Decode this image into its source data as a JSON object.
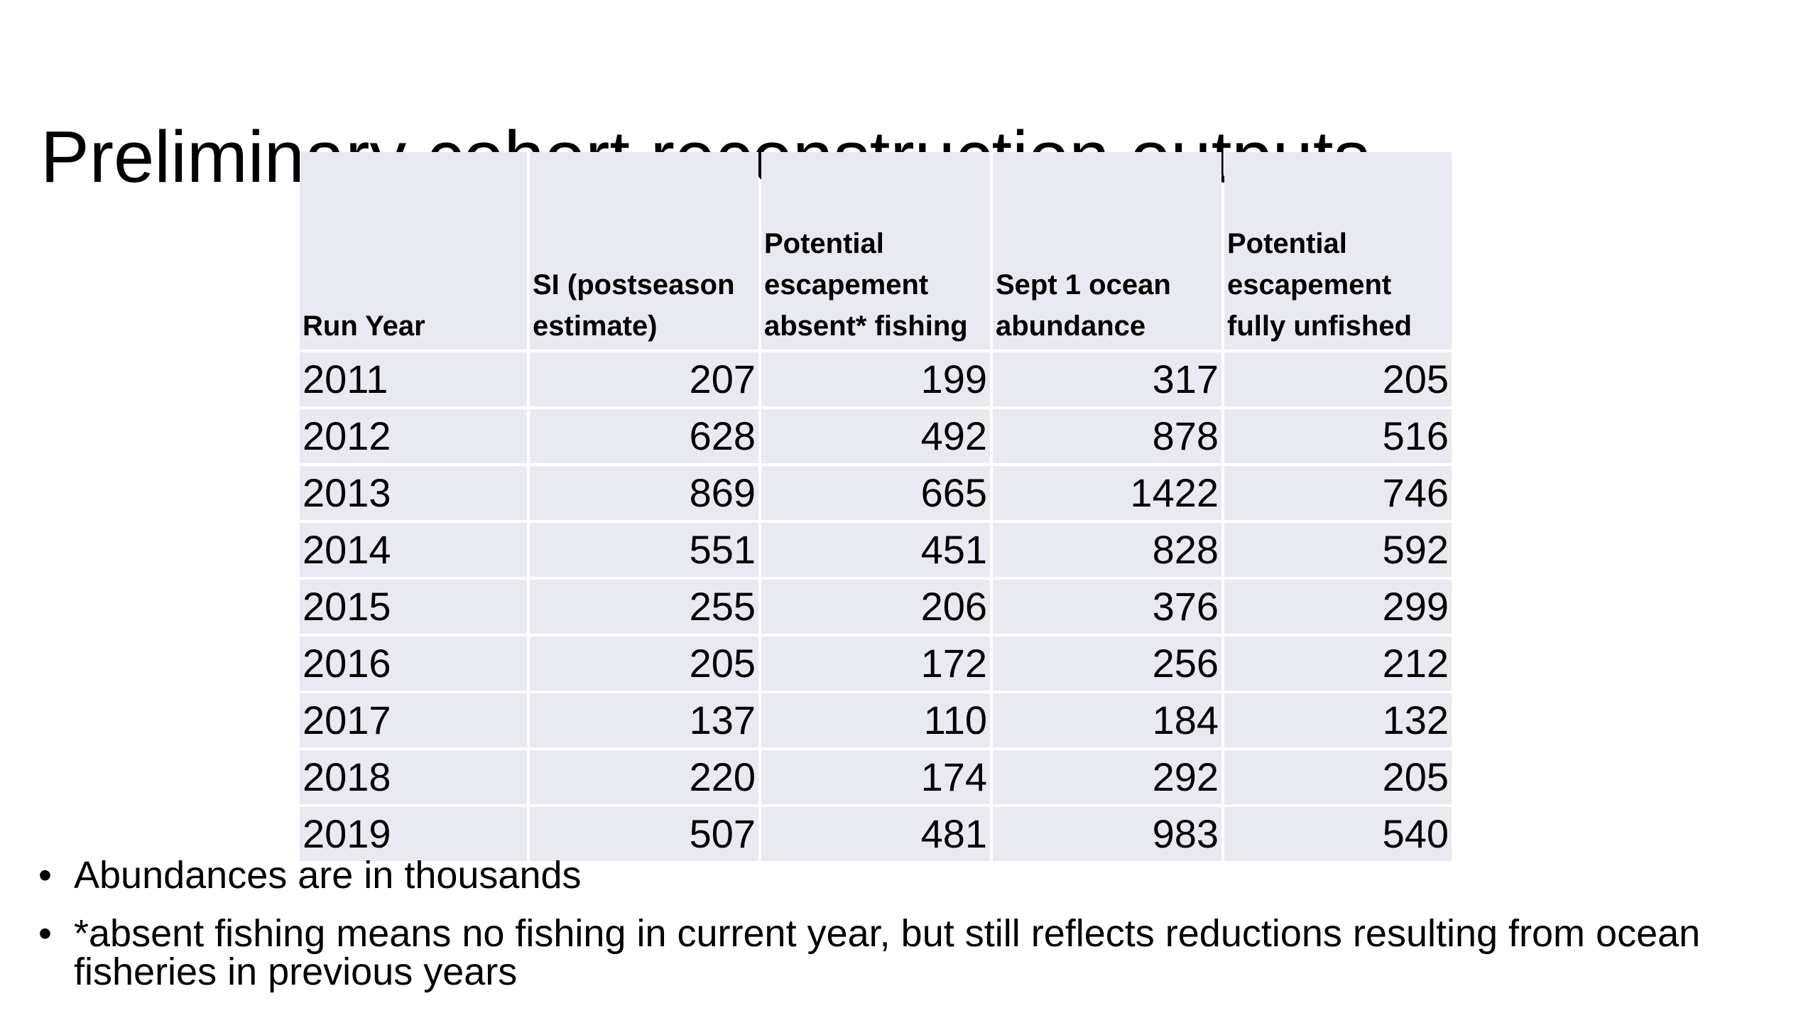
{
  "title": "Preliminary cohort reconstruction outputs",
  "table": {
    "headers": [
      "Run Year",
      "SI (postseason estimate)",
      "Potential escapement absent* fishing",
      "Sept 1 ocean abundance",
      "Potential escapement fully unfished"
    ],
    "rows": [
      [
        "2011",
        "207",
        "199",
        "317",
        "205"
      ],
      [
        "2012",
        "628",
        "492",
        "878",
        "516"
      ],
      [
        "2013",
        "869",
        "665",
        "1422",
        "746"
      ],
      [
        "2014",
        "551",
        "451",
        "828",
        "592"
      ],
      [
        "2015",
        "255",
        "206",
        "376",
        "299"
      ],
      [
        "2016",
        "205",
        "172",
        "256",
        "212"
      ],
      [
        "2017",
        "137",
        "110",
        "184",
        "132"
      ],
      [
        "2018",
        "220",
        "174",
        "292",
        "205"
      ],
      [
        "2019",
        "507",
        "481",
        "983",
        "540"
      ]
    ]
  },
  "bullets": [
    "Abundances are in thousands",
    "*absent fishing means no fishing in current year, but still reflects reductions resulting from ocean fisheries in previous years"
  ],
  "bullet_symbol": "•",
  "colors": {
    "cell_background": "#e9e9f1",
    "text": "#000000"
  }
}
